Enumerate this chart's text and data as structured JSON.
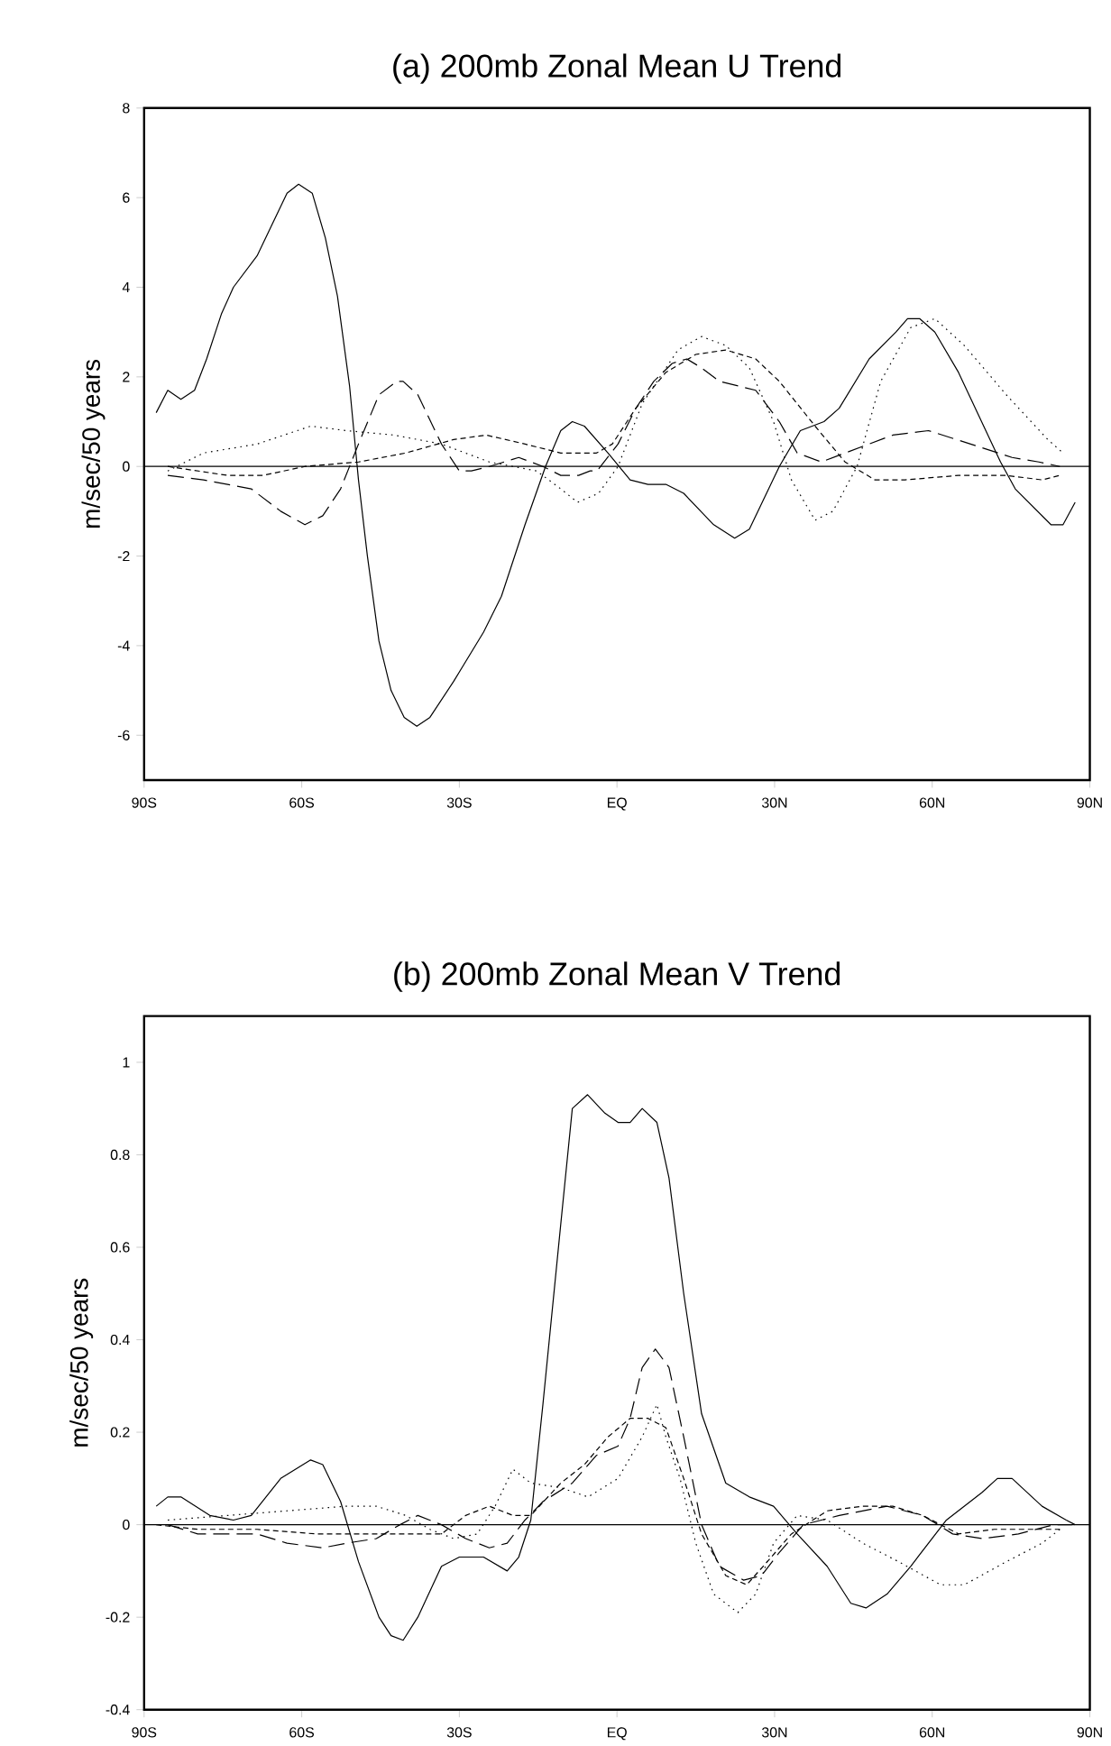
{
  "chart_data": [
    {
      "type": "line",
      "title": "(a) 200mb Zonal Mean U Trend",
      "ylabel": "m/sec/50 years",
      "marker": "none",
      "xlim": [
        -90,
        90
      ],
      "xticks": [
        {
          "value": -90,
          "label": "90S"
        },
        {
          "value": -60,
          "label": "60S"
        },
        {
          "value": -30,
          "label": "30S"
        },
        {
          "value": 0,
          "label": "EQ"
        },
        {
          "value": 30,
          "label": "30N"
        },
        {
          "value": 60,
          "label": "60N"
        },
        {
          "value": 90,
          "label": "90N"
        }
      ],
      "ylim": [
        -7,
        8
      ],
      "yticks": [
        -6,
        -4,
        -2,
        0,
        2,
        4,
        6,
        8
      ],
      "ref_lines": [
        {
          "axis": "y",
          "value": 0,
          "color": "#000000"
        }
      ],
      "series": [
        {
          "color": "#000000",
          "line_style": "solid",
          "x": [
            -87.7,
            -85.5,
            -83,
            -80.4,
            -78.1,
            -75.3,
            -73,
            -68.5,
            -62.8,
            -60.6,
            -58,
            -55.5,
            -53.2,
            -50.9,
            -49.2,
            -47.5,
            -45.3,
            -43,
            -40.5,
            -38.1,
            -35.6,
            -31.1,
            -25.4,
            -22,
            -17.5,
            -13.6,
            -10.7,
            -8.5,
            -6.2,
            -1.7,
            2.5,
            5.9,
            9.3,
            12.7,
            18.4,
            22.4,
            25.2,
            30.9,
            34.9,
            39.4,
            42.3,
            48,
            53.1,
            55.3,
            57.6,
            60.5,
            65,
            73,
            75.8,
            82.6,
            84.9,
            87.2
          ],
          "values": [
            1.2,
            1.7,
            1.5,
            1.7,
            2.4,
            3.4,
            4.0,
            4.7,
            6.1,
            6.3,
            6.1,
            5.1,
            3.8,
            1.8,
            -0.3,
            -2.0,
            -3.9,
            -5.0,
            -5.6,
            -5.8,
            -5.6,
            -4.8,
            -3.7,
            -2.9,
            -1.3,
            0,
            0.8,
            1.0,
            0.9,
            0.3,
            -0.3,
            -0.4,
            -0.4,
            -0.6,
            -1.3,
            -1.6,
            -1.4,
            0,
            0.8,
            1.0,
            1.3,
            2.4,
            3.0,
            3.3,
            3.3,
            3.0,
            2.1,
            0.1,
            -0.5,
            -1.3,
            -1.3,
            -0.8
          ]
        },
        {
          "color": "#000000",
          "line_style": "dashed",
          "x": [
            -85.5,
            -78.7,
            -69.6,
            -64,
            -59.4,
            -56,
            -52.6,
            -49.2,
            -45.3,
            -41.9,
            -40.7,
            -37.9,
            -33.4,
            -30,
            -27.7,
            -24.3,
            -18.7,
            -14.1,
            -10.7,
            -7.3,
            -5.1,
            -3.8,
            0.2,
            3.6,
            7,
            10.5,
            13.3,
            16.1,
            19.5,
            26.4,
            30.9,
            34.3,
            38.9,
            43.4,
            52.5,
            59.3,
            67.3,
            75.2,
            80.3,
            84.3
          ],
          "values": [
            -0.2,
            -0.3,
            -0.5,
            -1.0,
            -1.3,
            -1.1,
            -0.5,
            0.5,
            1.6,
            1.9,
            1.9,
            1.6,
            0.5,
            -0.1,
            -0.1,
            0,
            0.2,
            0,
            -0.2,
            -0.2,
            -0.1,
            -0.1,
            0.5,
            1.3,
            1.9,
            2.3,
            2.4,
            2.2,
            1.9,
            1.7,
            1.0,
            0.3,
            0.1,
            0.3,
            0.7,
            0.8,
            0.5,
            0.2,
            0.1,
            0
          ]
        },
        {
          "color": "#000000",
          "line_style": "dashed",
          "x": [
            -85.5,
            -74.1,
            -67.4,
            -59.4,
            -49.2,
            -40.2,
            -31.1,
            -24.9,
            -17.5,
            -10.7,
            -3.9,
            -0.9,
            3.6,
            9.3,
            15,
            20.7,
            26.4,
            30.9,
            37.7,
            43.4,
            49.1,
            54.8,
            65,
            74.1,
            80.9,
            84.3
          ],
          "values": [
            0,
            -0.2,
            -0.2,
            0,
            0.1,
            0.3,
            0.6,
            0.7,
            0.5,
            0.3,
            0.3,
            0.5,
            1.3,
            2.1,
            2.5,
            2.6,
            2.4,
            1.9,
            0.9,
            0.1,
            -0.3,
            -0.3,
            -0.2,
            -0.2,
            -0.3,
            -0.2
          ]
        },
        {
          "color": "#000000",
          "line_style": "dotted",
          "x": [
            -85.5,
            -78.7,
            -68.5,
            -58.3,
            -51.5,
            -42.4,
            -33.4,
            -24.3,
            -15.3,
            -10.7,
            -7.5,
            -3.5,
            0.2,
            4.8,
            11.6,
            16.1,
            20.7,
            25.2,
            29.8,
            33.2,
            37.7,
            41.1,
            45.7,
            50.2,
            55.9,
            60.5,
            66.1,
            74.1,
            82,
            84.9
          ],
          "values": [
            -0.1,
            0.3,
            0.5,
            0.9,
            0.8,
            0.7,
            0.5,
            0.1,
            -0.1,
            -0.5,
            -0.8,
            -0.6,
            0,
            1.4,
            2.6,
            2.9,
            2.7,
            2.2,
            1.0,
            -0.3,
            -1.2,
            -1.0,
            0,
            1.9,
            3.1,
            3.3,
            2.7,
            1.6,
            0.6,
            0.3
          ]
        }
      ]
    },
    {
      "type": "line",
      "title": "(b) 200mb Zonal Mean V Trend",
      "ylabel": "m/sec/50 years",
      "marker": "none",
      "xlim": [
        -90,
        90
      ],
      "xticks": [
        {
          "value": -90,
          "label": "90S"
        },
        {
          "value": -60,
          "label": "60S"
        },
        {
          "value": -30,
          "label": "30S"
        },
        {
          "value": 0,
          "label": "EQ"
        },
        {
          "value": 30,
          "label": "30N"
        },
        {
          "value": 60,
          "label": "60N"
        },
        {
          "value": 90,
          "label": "90N"
        }
      ],
      "ylim": [
        -0.4,
        1.1
      ],
      "yticks": [
        -0.4,
        -0.2,
        0,
        0.2,
        0.4,
        0.6,
        0.8,
        1
      ],
      "ref_lines": [
        {
          "axis": "y",
          "value": 0,
          "color": "#000000"
        }
      ],
      "series": [
        {
          "color": "#000000",
          "line_style": "solid",
          "x": [
            -87.7,
            -85.5,
            -83,
            -77.5,
            -73,
            -69.6,
            -64,
            -58.3,
            -56,
            -52.6,
            -49.2,
            -45.3,
            -43,
            -40.7,
            -37.9,
            -33.4,
            -30,
            -25.4,
            -20.9,
            -18.7,
            -16.4,
            -14.1,
            -10.7,
            -8.5,
            -5.6,
            -2.3,
            0.2,
            2.5,
            4.8,
            7.6,
            9.9,
            12.7,
            16.1,
            20.7,
            25.2,
            29.8,
            34.3,
            40,
            44.5,
            47.4,
            51.4,
            55.9,
            62.7,
            69.5,
            72.4,
            75.2,
            80.9,
            85.5,
            87.2
          ],
          "values": [
            0.04,
            0.06,
            0.06,
            0.02,
            0.01,
            0.02,
            0.1,
            0.14,
            0.13,
            0.05,
            -0.08,
            -0.2,
            -0.24,
            -0.25,
            -0.2,
            -0.09,
            -0.07,
            -0.07,
            -0.1,
            -0.07,
            0.01,
            0.26,
            0.65,
            0.9,
            0.93,
            0.89,
            0.87,
            0.87,
            0.9,
            0.87,
            0.75,
            0.5,
            0.24,
            0.09,
            0.06,
            0.04,
            -0.02,
            -0.09,
            -0.17,
            -0.18,
            -0.15,
            -0.09,
            0.01,
            0.07,
            0.1,
            0.1,
            0.04,
            0.01,
            0
          ]
        },
        {
          "color": "#000000",
          "line_style": "dashed",
          "x": [
            -85.5,
            -79.8,
            -74.1,
            -68.5,
            -62.8,
            -56,
            -51.5,
            -45.8,
            -41.3,
            -37.9,
            -33.4,
            -28.8,
            -24.3,
            -20.9,
            -17.5,
            -14.1,
            -8.5,
            -3.9,
            0.2,
            2.5,
            4.8,
            7.3,
            9.9,
            12.7,
            16.1,
            19.5,
            24.1,
            27.5,
            30.9,
            35.5,
            42.3,
            51.4,
            58.2,
            63.9,
            69.5,
            76.4,
            83.2,
            86.6
          ],
          "values": [
            0,
            -0.02,
            -0.02,
            -0.02,
            -0.04,
            -0.05,
            -0.04,
            -0.03,
            0,
            0.02,
            0,
            -0.03,
            -0.05,
            -0.04,
            0.01,
            0.05,
            0.09,
            0.15,
            0.17,
            0.23,
            0.34,
            0.38,
            0.34,
            0.19,
            0,
            -0.09,
            -0.12,
            -0.11,
            -0.06,
            0,
            0.02,
            0.04,
            0.02,
            -0.02,
            -0.03,
            -0.02,
            0,
            0
          ]
        },
        {
          "color": "#000000",
          "line_style": "dashed",
          "x": [
            -87.7,
            -79.8,
            -68.5,
            -57.2,
            -49.2,
            -40.2,
            -33.4,
            -28.8,
            -24.3,
            -19.8,
            -16.4,
            -10.7,
            -6.2,
            -1.7,
            2.5,
            5.9,
            9.3,
            12.7,
            16.1,
            20.7,
            24.7,
            28.6,
            33.2,
            40,
            46.8,
            52.5,
            58.2,
            65,
            71.8,
            78.6,
            84.3
          ],
          "values": [
            0,
            -0.01,
            -0.01,
            -0.02,
            -0.02,
            -0.02,
            -0.02,
            0.02,
            0.04,
            0.02,
            0.02,
            0.09,
            0.13,
            0.19,
            0.23,
            0.23,
            0.21,
            0.1,
            -0.02,
            -0.11,
            -0.13,
            -0.08,
            -0.02,
            0.03,
            0.04,
            0.04,
            0.02,
            -0.02,
            -0.01,
            -0.01,
            -0.01
          ]
        },
        {
          "color": "#000000",
          "line_style": "dotted",
          "x": [
            -85.5,
            -74.1,
            -62.8,
            -51.5,
            -45.8,
            -40.2,
            -35.6,
            -31.1,
            -26.6,
            -23.2,
            -19.8,
            -16.4,
            -10.7,
            -5.5,
            0.2,
            4.8,
            7.6,
            9.3,
            12,
            15,
            18.4,
            23,
            26.4,
            29.8,
            34.3,
            40,
            46.8,
            53.6,
            61.6,
            66.1,
            74.1,
            80.9,
            84.3
          ],
          "values": [
            0.01,
            0.02,
            0.03,
            0.04,
            0.04,
            0.02,
            -0.01,
            -0.03,
            -0.02,
            0.04,
            0.12,
            0.09,
            0.08,
            0.06,
            0.1,
            0.19,
            0.26,
            0.19,
            0.1,
            -0.04,
            -0.15,
            -0.19,
            -0.15,
            -0.04,
            0.02,
            0.01,
            -0.04,
            -0.08,
            -0.13,
            -0.13,
            -0.08,
            -0.04,
            -0.01
          ]
        }
      ]
    }
  ]
}
